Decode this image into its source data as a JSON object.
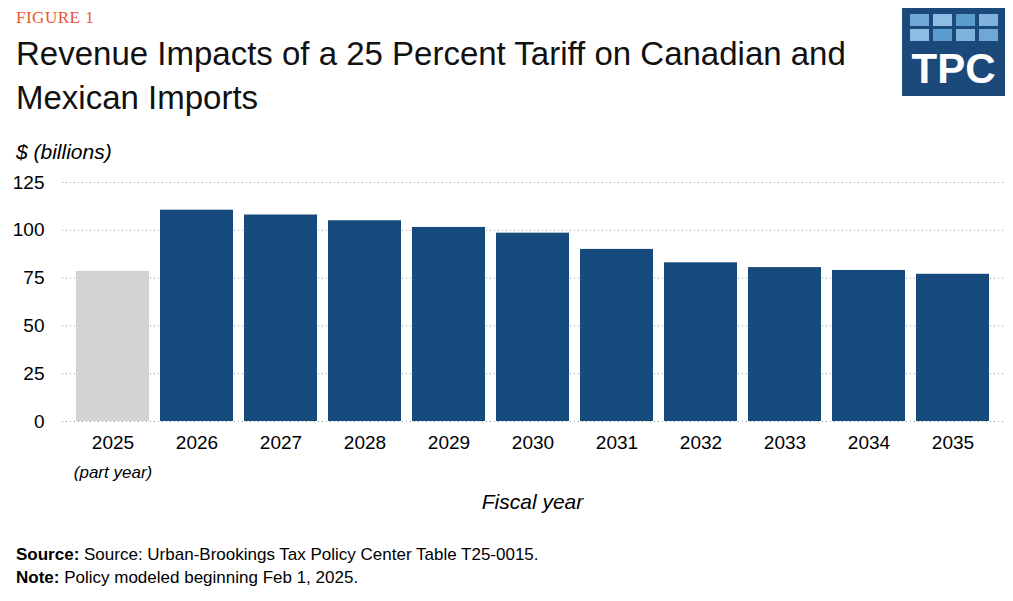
{
  "chart_data": {
    "type": "bar",
    "figure_label": "FIGURE 1",
    "title": "Revenue Impacts of a 25 Percent Tariff on Canadian and Mexican Imports",
    "logo_text": "TPC",
    "y_label": "$ (billions)",
    "x_label": "Fiscal year",
    "categories": [
      "2025",
      "2026",
      "2027",
      "2028",
      "2029",
      "2030",
      "2031",
      "2032",
      "2033",
      "2034",
      "2035"
    ],
    "values": [
      78.5,
      110.5,
      108,
      105,
      101.5,
      98.5,
      90,
      83,
      80.5,
      79,
      77
    ],
    "colors": [
      "#d3d3d3",
      "#174a7c",
      "#174a7c",
      "#174a7c",
      "#174a7c",
      "#174a7c",
      "#174a7c",
      "#174a7c",
      "#174a7c",
      "#174a7c",
      "#174a7c"
    ],
    "ylim": [
      0,
      125
    ],
    "yticks": [
      0,
      25,
      50,
      75,
      100,
      125
    ],
    "grid": true,
    "annotations": [
      {
        "category": "2025",
        "text": "(part year)"
      }
    ],
    "footnotes": [
      {
        "label": "Source:",
        "text": "Source: Urban-Brookings Tax Policy Center Table T25-0015."
      },
      {
        "label": "Note:",
        "text": "Policy modeled beginning Feb 1, 2025."
      }
    ]
  }
}
